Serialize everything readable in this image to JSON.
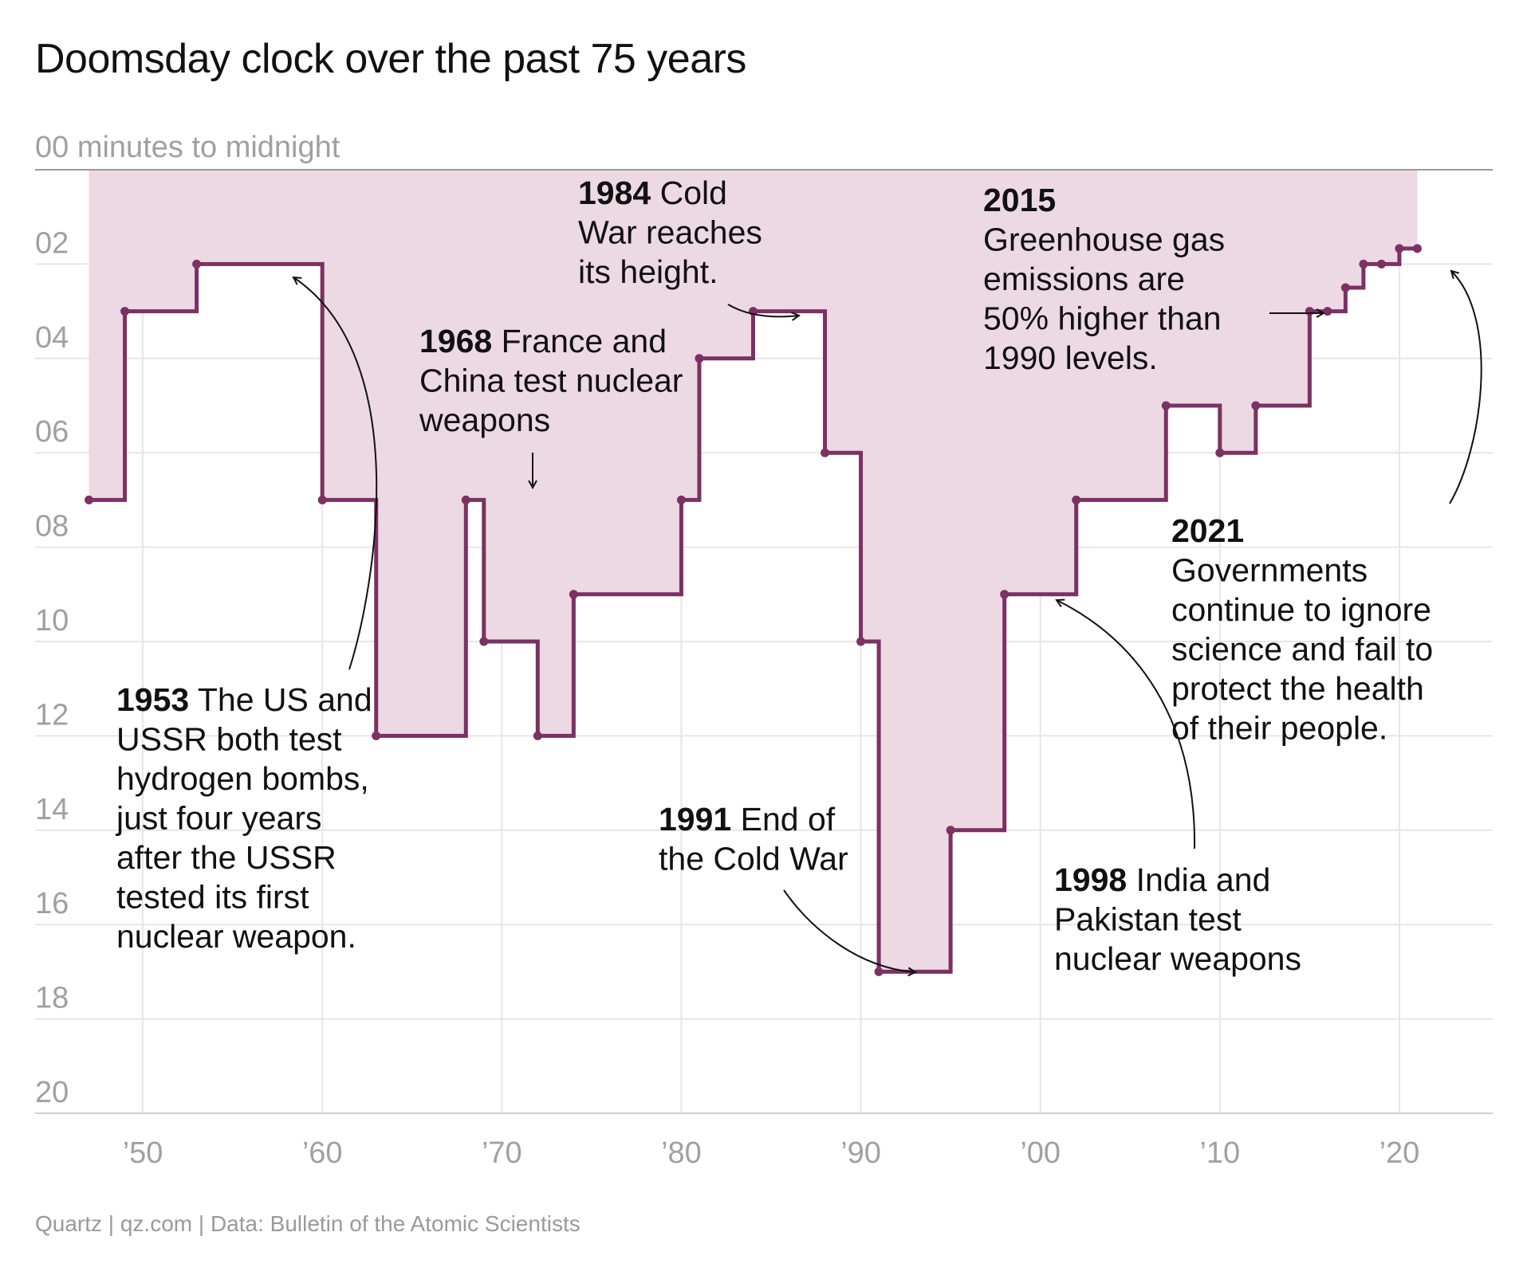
{
  "title": "Doomsday clock over the past 75 years",
  "source": "Quartz | qz.com | Data: Bulletin of the Atomic Scientists",
  "chart_data": {
    "type": "line",
    "subtype": "step",
    "title": "Doomsday clock over the past 75 years",
    "ylabel": "00 minutes to midnight",
    "y_ticks": [
      "02",
      "04",
      "06",
      "08",
      "10",
      "12",
      "14",
      "16",
      "18",
      "20"
    ],
    "x_ticks": [
      "’50",
      "’60",
      "’70",
      "’80",
      "’90",
      "’00",
      "’10",
      "’20"
    ],
    "x_tick_values": [
      1950,
      1960,
      1970,
      1980,
      1990,
      2000,
      2010,
      2020
    ],
    "y_tick_values": [
      2,
      4,
      6,
      8,
      10,
      12,
      14,
      16,
      18,
      20
    ],
    "xlim": [
      1944,
      2025.2
    ],
    "ylim": [
      0,
      20
    ],
    "y_inverted": true,
    "grid": true,
    "line_color": "#7b3163",
    "fill_color": "#ecd9e3",
    "points": [
      {
        "x": 1947,
        "y": 7
      },
      {
        "x": 1949,
        "y": 3
      },
      {
        "x": 1953,
        "y": 2
      },
      {
        "x": 1960,
        "y": 7
      },
      {
        "x": 1963,
        "y": 12
      },
      {
        "x": 1968,
        "y": 7
      },
      {
        "x": 1969,
        "y": 10
      },
      {
        "x": 1972,
        "y": 12
      },
      {
        "x": 1974,
        "y": 9
      },
      {
        "x": 1980,
        "y": 7
      },
      {
        "x": 1981,
        "y": 4
      },
      {
        "x": 1984,
        "y": 3
      },
      {
        "x": 1988,
        "y": 6
      },
      {
        "x": 1990,
        "y": 10
      },
      {
        "x": 1991,
        "y": 17
      },
      {
        "x": 1995,
        "y": 14
      },
      {
        "x": 1998,
        "y": 9
      },
      {
        "x": 2002,
        "y": 7
      },
      {
        "x": 2007,
        "y": 5
      },
      {
        "x": 2010,
        "y": 6
      },
      {
        "x": 2012,
        "y": 5
      },
      {
        "x": 2015,
        "y": 3
      },
      {
        "x": 2016,
        "y": 3
      },
      {
        "x": 2017,
        "y": 2.5
      },
      {
        "x": 2018,
        "y": 2
      },
      {
        "x": 2019,
        "y": 2
      },
      {
        "x": 2020,
        "y": 1.67
      },
      {
        "x": 2021,
        "y": 1.67
      }
    ],
    "annotations": [
      {
        "id": "a1953",
        "year": "1953",
        "lines": [
          " The US and",
          "USSR both test",
          "hydrogen bombs,",
          "just four years",
          "after the USSR",
          "tested its first",
          "nuclear weapon."
        ]
      },
      {
        "id": "a1968",
        "year": "1968",
        "lines": [
          " France and",
          "China test nuclear",
          "weapons"
        ]
      },
      {
        "id": "a1984",
        "year": "1984",
        "lines": [
          " Cold",
          "War reaches",
          "its height."
        ]
      },
      {
        "id": "a1991",
        "year": "1991",
        "lines": [
          " End of",
          "the Cold War"
        ]
      },
      {
        "id": "a2015",
        "year": "2015",
        "lines": [
          "Greenhouse gas",
          "emissions are",
          "50% higher than",
          "1990 levels."
        ]
      },
      {
        "id": "a2021",
        "year": "2021",
        "lines": [
          "Governments",
          "continue to ignore",
          "science and fail to",
          "protect the health",
          "of their people."
        ]
      },
      {
        "id": "a1998",
        "year": "1998",
        "lines": [
          " India and",
          "Pakistan test",
          "nuclear weapons"
        ]
      }
    ]
  }
}
